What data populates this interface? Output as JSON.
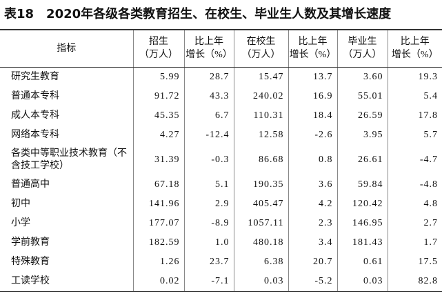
{
  "header": {
    "title": "表18　2020年各级各类教育招生、在校生、毕业生人数及其增长速度"
  },
  "table": {
    "columns": [
      [
        "指标"
      ],
      [
        "招生",
        "（万人）"
      ],
      [
        "比上年",
        "增长（%）"
      ],
      [
        "在校生",
        "（万人）"
      ],
      [
        "比上年",
        "增长（%）"
      ],
      [
        "毕业生",
        "（万人）"
      ],
      [
        "比上年",
        "增长（%）"
      ]
    ],
    "rows": [
      [
        "研究生教育",
        "5.99",
        "28.7",
        "15.47",
        "13.7",
        "3.60",
        "19.3"
      ],
      [
        "普通本专科",
        "91.72",
        "43.3",
        "240.02",
        "16.9",
        "55.01",
        "5.4"
      ],
      [
        "成人本专科",
        "45.35",
        "6.7",
        "110.31",
        "18.4",
        "26.59",
        "17.8"
      ],
      [
        "网络本专科",
        "4.27",
        "-12.4",
        "12.58",
        "-2.6",
        "3.95",
        "5.7"
      ],
      [
        "各类中等职业技术教育（不含技工学校）",
        "31.39",
        "-0.3",
        "86.68",
        "0.8",
        "26.61",
        "-4.7"
      ],
      [
        "普通高中",
        "67.18",
        "5.1",
        "190.35",
        "3.6",
        "59.84",
        "-4.8"
      ],
      [
        "初中",
        "141.96",
        "2.9",
        "405.47",
        "4.2",
        "120.42",
        "4.8"
      ],
      [
        "小学",
        "177.07",
        "-8.9",
        "1057.11",
        "2.3",
        "146.95",
        "2.7"
      ],
      [
        "学前教育",
        "182.59",
        "1.0",
        "480.18",
        "3.4",
        "181.43",
        "1.7"
      ],
      [
        "特殊教育",
        "1.26",
        "23.7",
        "6.38",
        "20.7",
        "0.61",
        "17.5"
      ],
      [
        "工读学校",
        "0.02",
        "-7.1",
        "0.03",
        "-5.2",
        "0.03",
        "82.8"
      ]
    ]
  }
}
